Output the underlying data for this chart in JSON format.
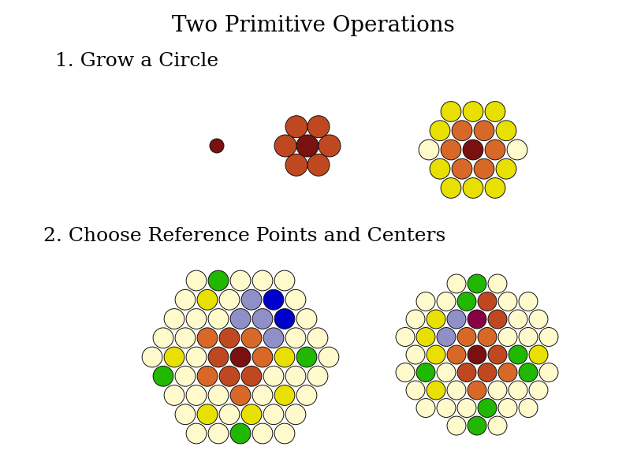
{
  "title": "Two Primitive Operations",
  "label1": "1. Grow a Circle",
  "label2": "2. Choose Reference Points and Centers",
  "bg_color": "#ffffff",
  "title_fontsize": 20,
  "label_fontsize": 18,
  "dark_red": "#7B1010",
  "orange_red": "#C04820",
  "orange": "#D86828",
  "light_orange": "#E89060",
  "yellow": "#E8E000",
  "light_yellow": "#FFFF90",
  "cream": "#FFFACC",
  "very_cream": "#FFFDE8",
  "green": "#20B800",
  "blue": "#0000CC",
  "lavender": "#9090C8",
  "purple": "#880044"
}
